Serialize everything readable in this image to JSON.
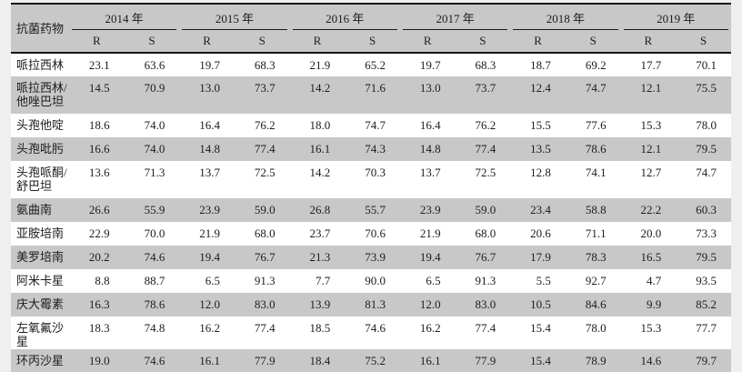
{
  "colors": {
    "stripe_gray": "#c8c8c8",
    "row_white": "#ffffff",
    "rule_black": "#161616",
    "page_background": "#f0efed",
    "text": "#1c1c1c"
  },
  "table": {
    "drug_column_header": "抗菌药物",
    "years": [
      "2014 年",
      "2015 年",
      "2016 年",
      "2017 年",
      "2018 年",
      "2019 年"
    ],
    "col_labels": [
      "R",
      "S",
      "R",
      "S",
      "R",
      "S",
      "R",
      "S",
      "R",
      "S",
      "R",
      "S"
    ],
    "rows": [
      {
        "name": "哌拉西林",
        "values": [
          "23.1",
          "63.6",
          "19.7",
          "68.3",
          "21.9",
          "65.2",
          "19.7",
          "68.3",
          "18.7",
          "69.2",
          "17.7",
          "70.1"
        ]
      },
      {
        "name": "哌拉西林/\n他唑巴坦",
        "values": [
          "14.5",
          "70.9",
          "13.0",
          "73.7",
          "14.2",
          "71.6",
          "13.0",
          "73.7",
          "12.4",
          "74.7",
          "12.1",
          "75.5"
        ]
      },
      {
        "name": "头孢他啶",
        "values": [
          "18.6",
          "74.0",
          "16.4",
          "76.2",
          "18.0",
          "74.7",
          "16.4",
          "76.2",
          "15.5",
          "77.6",
          "15.3",
          "78.0"
        ]
      },
      {
        "name": "头孢吡肟",
        "values": [
          "16.6",
          "74.0",
          "14.8",
          "77.4",
          "16.1",
          "74.3",
          "14.8",
          "77.4",
          "13.5",
          "78.6",
          "12.1",
          "79.5"
        ]
      },
      {
        "name": "头孢哌酮/\n舒巴坦",
        "values": [
          "13.6",
          "71.3",
          "13.7",
          "72.5",
          "14.2",
          "70.3",
          "13.7",
          "72.5",
          "12.8",
          "74.1",
          "12.7",
          "74.7"
        ]
      },
      {
        "name": "氨曲南",
        "values": [
          "26.6",
          "55.9",
          "23.9",
          "59.0",
          "26.8",
          "55.7",
          "23.9",
          "59.0",
          "23.4",
          "58.8",
          "22.2",
          "60.3"
        ]
      },
      {
        "name": "亚胺培南",
        "values": [
          "22.9",
          "70.0",
          "21.9",
          "68.0",
          "23.7",
          "70.6",
          "21.9",
          "68.0",
          "20.6",
          "71.1",
          "20.0",
          "73.3"
        ]
      },
      {
        "name": "美罗培南",
        "values": [
          "20.2",
          "74.6",
          "19.4",
          "76.7",
          "21.3",
          "73.9",
          "19.4",
          "76.7",
          "17.9",
          "78.3",
          "16.5",
          "79.5"
        ]
      },
      {
        "name": "阿米卡星",
        "values": [
          "8.8",
          "88.7",
          "6.5",
          "91.3",
          "7.7",
          "90.0",
          "6.5",
          "91.3",
          "5.5",
          "92.7",
          "4.7",
          "93.5"
        ]
      },
      {
        "name": "庆大霉素",
        "values": [
          "16.3",
          "78.6",
          "12.0",
          "83.0",
          "13.9",
          "81.3",
          "12.0",
          "83.0",
          "10.5",
          "84.6",
          "9.9",
          "85.2"
        ]
      },
      {
        "name": "左氧氟沙星",
        "values": [
          "18.3",
          "74.8",
          "16.2",
          "77.4",
          "18.5",
          "74.6",
          "16.2",
          "77.4",
          "15.4",
          "78.0",
          "15.3",
          "77.7"
        ]
      },
      {
        "name": "环丙沙星",
        "values": [
          "19.0",
          "74.6",
          "16.1",
          "77.9",
          "18.4",
          "75.2",
          "16.1",
          "77.9",
          "15.4",
          "78.9",
          "14.6",
          "79.7"
        ]
      }
    ]
  }
}
